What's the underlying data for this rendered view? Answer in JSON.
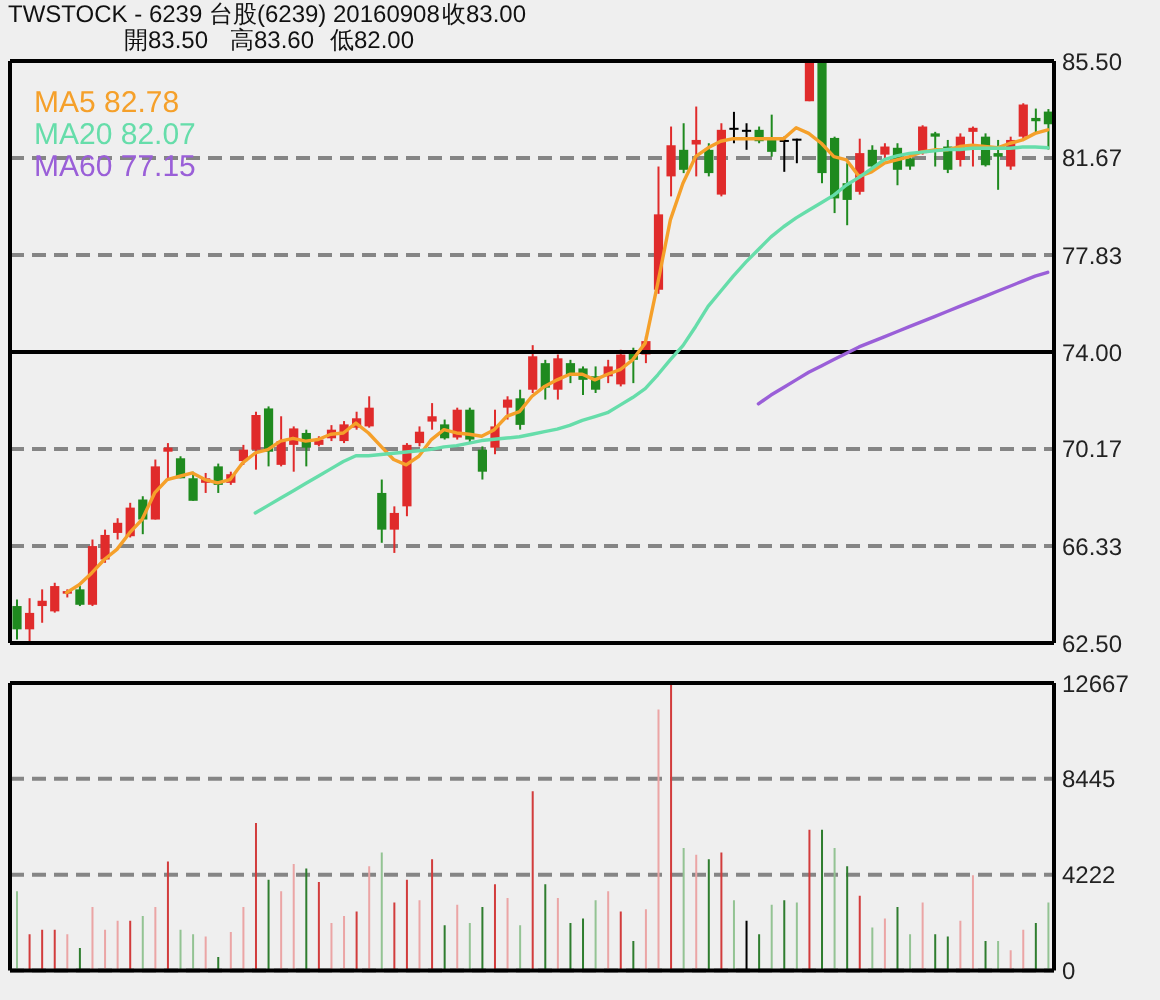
{
  "chart_data": [
    {
      "type": "candlestick",
      "title": "TWSTOCK - 6239 台股(6239) 20160908",
      "annotations": [
        "收83.00",
        "開83.50",
        "高83.60",
        "低82.00"
      ],
      "categories": [
        null,
        null,
        null,
        null,
        null,
        null,
        null,
        null,
        null,
        null,
        null,
        null,
        null,
        null,
        null,
        null,
        null,
        null,
        null,
        null,
        null,
        null,
        null,
        null,
        null,
        null,
        null,
        null,
        null,
        null,
        null,
        null,
        null,
        null,
        null,
        null,
        null,
        null,
        null,
        null,
        null,
        null,
        null,
        null,
        null,
        null,
        null,
        null,
        null,
        null,
        null,
        null,
        null,
        null,
        null,
        null,
        null,
        null,
        null,
        null,
        null,
        null,
        null,
        null,
        null,
        null,
        null,
        null,
        null,
        null,
        null,
        null,
        null,
        null,
        null,
        null,
        null,
        null,
        null,
        null,
        null,
        null,
        null
      ],
      "ohlc": [
        [
          63.96,
          64.22,
          62.64,
          63.04
        ],
        [
          63.04,
          64.27,
          62.5,
          63.69
        ],
        [
          63.96,
          64.62,
          63.3,
          64.17
        ],
        [
          63.75,
          64.88,
          63.7,
          64.75
        ],
        [
          64.45,
          64.62,
          64.3,
          64.55
        ],
        [
          64.62,
          64.75,
          63.96,
          64.01
        ],
        [
          64.01,
          66.59,
          63.96,
          66.33
        ],
        [
          65.8,
          66.98,
          65.67,
          66.77
        ],
        [
          66.85,
          67.43,
          66.59,
          67.25
        ],
        [
          66.72,
          68.04,
          66.67,
          67.85
        ],
        [
          68.17,
          68.3,
          66.8,
          67.38
        ],
        [
          67.38,
          69.75,
          67.38,
          69.48
        ],
        [
          70.06,
          70.4,
          68.96,
          70.22
        ],
        [
          69.8,
          69.88,
          69.01,
          69.01
        ],
        [
          69.01,
          69.27,
          68.12,
          68.12
        ],
        [
          68.83,
          69.22,
          68.43,
          69.01
        ],
        [
          69.48,
          69.59,
          68.43,
          68.75
        ],
        [
          68.83,
          69.27,
          68.75,
          69.17
        ],
        [
          69.69,
          70.33,
          69.54,
          70.14
        ],
        [
          70.14,
          71.64,
          69.35,
          71.51
        ],
        [
          71.77,
          71.85,
          69.48,
          70.06
        ],
        [
          69.54,
          71.46,
          69.48,
          70.48
        ],
        [
          70.33,
          71.06,
          69.27,
          70.98
        ],
        [
          70.8,
          70.93,
          69.48,
          70.22
        ],
        [
          70.33,
          70.67,
          70.27,
          70.54
        ],
        [
          70.59,
          71.11,
          70.48,
          70.93
        ],
        [
          70.48,
          71.27,
          70.4,
          71.14
        ],
        [
          71.01,
          71.64,
          70.93,
          71.38
        ],
        [
          71.06,
          72.25,
          71.01,
          71.8
        ],
        [
          68.43,
          68.96,
          66.46,
          66.98
        ],
        [
          66.98,
          67.9,
          66.06,
          67.64
        ],
        [
          67.9,
          70.4,
          67.51,
          70.33
        ],
        [
          70.4,
          71.06,
          70.27,
          70.85
        ],
        [
          71.25,
          71.98,
          70.93,
          71.46
        ],
        [
          71.14,
          71.33,
          70.54,
          70.59
        ],
        [
          70.62,
          71.8,
          70.54,
          71.72
        ],
        [
          71.72,
          71.8,
          70.4,
          70.54
        ],
        [
          70.14,
          70.27,
          68.96,
          69.27
        ],
        [
          70.22,
          71.72,
          69.96,
          71.06
        ],
        [
          71.8,
          72.25,
          71.33,
          72.12
        ],
        [
          72.17,
          72.51,
          70.93,
          71.12
        ],
        [
          72.51,
          74.27,
          72.38,
          73.83
        ],
        [
          73.56,
          73.69,
          72.12,
          72.59
        ],
        [
          72.51,
          73.9,
          72.12,
          73.75
        ],
        [
          73.56,
          73.69,
          72.77,
          73.12
        ],
        [
          73.35,
          73.43,
          72.3,
          72.9
        ],
        [
          73.04,
          73.43,
          72.38,
          72.51
        ],
        [
          73.04,
          73.69,
          72.77,
          73.43
        ],
        [
          72.72,
          74.09,
          72.64,
          73.9
        ],
        [
          74.01,
          74.17,
          72.77,
          73.69
        ],
        [
          73.9,
          74.62,
          73.56,
          74.43
        ],
        [
          76.46,
          81.33,
          76.3,
          79.44
        ],
        [
          80.94,
          82.91,
          80.15,
          82.17
        ],
        [
          81.99,
          83.04,
          81.07,
          81.2
        ],
        [
          82.2,
          83.7,
          80.94,
          82.38
        ],
        [
          81.99,
          82.25,
          80.94,
          81.07
        ],
        [
          80.22,
          83.04,
          80.15,
          82.78
        ],
        [
          82.86,
          83.49,
          82.25,
          82.86
        ],
        [
          82.78,
          83.04,
          81.99,
          82.78
        ],
        [
          82.78,
          82.91,
          82.25,
          82.33
        ],
        [
          82.38,
          83.38,
          81.72,
          81.91
        ],
        [
          82.38,
          82.51,
          81.12,
          82.38
        ],
        [
          82.43,
          82.43,
          81.46,
          82.43
        ],
        [
          83.91,
          85.5,
          83.91,
          85.5
        ],
        [
          85.5,
          85.5,
          80.67,
          81.07
        ],
        [
          82.46,
          82.51,
          79.49,
          80.07
        ],
        [
          80.67,
          81.46,
          79.01,
          80.01
        ],
        [
          80.33,
          82.43,
          80.22,
          81.86
        ],
        [
          81.99,
          82.17,
          81.2,
          81.33
        ],
        [
          81.8,
          82.25,
          81.59,
          82.12
        ],
        [
          82.07,
          82.25,
          80.59,
          81.2
        ],
        [
          81.65,
          81.86,
          81.2,
          81.33
        ],
        [
          81.86,
          82.96,
          81.8,
          82.91
        ],
        [
          82.64,
          82.7,
          81.33,
          82.51
        ],
        [
          82.12,
          82.38,
          81.07,
          81.2
        ],
        [
          81.59,
          82.64,
          81.33,
          82.51
        ],
        [
          82.7,
          82.91,
          81.33,
          82.86
        ],
        [
          82.51,
          82.64,
          81.33,
          81.38
        ],
        [
          81.86,
          82.38,
          80.41,
          81.72
        ],
        [
          81.33,
          82.51,
          81.2,
          82.38
        ],
        [
          82.51,
          83.83,
          82.38,
          83.78
        ],
        [
          83.25,
          83.62,
          82.64,
          83.12
        ],
        [
          83.5,
          83.6,
          82.0,
          83.0
        ]
      ],
      "colors": [
        "#1f8a1f",
        "#e02b2b",
        "#e02b2b",
        "#e02b2b",
        "#e02b2b",
        "#1f8a1f",
        "#e02b2b",
        "#e02b2b",
        "#e02b2b",
        "#e02b2b",
        "#1f8a1f",
        "#e02b2b",
        "#e02b2b",
        "#1f8a1f",
        "#1f8a1f",
        "#e02b2b",
        "#1f8a1f",
        "#e02b2b",
        "#e02b2b",
        "#e02b2b",
        "#1f8a1f",
        "#e02b2b",
        "#e02b2b",
        "#1f8a1f",
        "#e02b2b",
        "#e02b2b",
        "#e02b2b",
        "#e02b2b",
        "#e02b2b",
        "#1f8a1f",
        "#e02b2b",
        "#e02b2b",
        "#e02b2b",
        "#e02b2b",
        "#1f8a1f",
        "#e02b2b",
        "#1f8a1f",
        "#1f8a1f",
        "#e02b2b",
        "#e02b2b",
        "#1f8a1f",
        "#e02b2b",
        "#1f8a1f",
        "#e02b2b",
        "#1f8a1f",
        "#1f8a1f",
        "#1f8a1f",
        "#e02b2b",
        "#e02b2b",
        "#1f8a1f",
        "#e02b2b",
        "#e02b2b",
        "#e02b2b",
        "#1f8a1f",
        "#e02b2b",
        "#1f8a1f",
        "#e02b2b",
        "#000000",
        "#000000",
        "#1f8a1f",
        "#1f8a1f",
        "#000000",
        "#000000",
        "#e02b2b",
        "#1f8a1f",
        "#1f8a1f",
        "#1f8a1f",
        "#e02b2b",
        "#1f8a1f",
        "#e02b2b",
        "#1f8a1f",
        "#1f8a1f",
        "#e02b2b",
        "#1f8a1f",
        "#1f8a1f",
        "#e02b2b",
        "#e02b2b",
        "#1f8a1f",
        "#1f8a1f",
        "#e02b2b",
        "#e02b2b",
        "#1f8a1f",
        "#1f8a1f"
      ],
      "series": [
        {
          "name": "MA5 82.78",
          "type": "line",
          "color": "#f5a02a",
          "values": [
            null,
            null,
            null,
            null,
            64.49,
            64.8,
            65.27,
            65.8,
            66.2,
            66.85,
            67.38,
            68.43,
            68.96,
            69.09,
            69.22,
            68.96,
            68.83,
            68.96,
            69.62,
            70.01,
            70.14,
            70.48,
            70.59,
            70.48,
            70.54,
            70.75,
            70.8,
            71.19,
            70.8,
            70.27,
            69.75,
            69.54,
            69.88,
            70.54,
            70.93,
            70.8,
            70.75,
            70.67,
            70.93,
            71.46,
            71.64,
            72.25,
            72.64,
            72.9,
            73.12,
            73.12,
            72.9,
            73.12,
            73.3,
            73.69,
            74.35,
            76.72,
            79.22,
            80.67,
            81.72,
            82.07,
            82.33,
            82.43,
            82.43,
            82.43,
            82.43,
            82.43,
            82.86,
            82.64,
            82.25,
            81.72,
            81.59,
            80.94,
            81.12,
            81.46,
            81.59,
            81.72,
            81.91,
            81.99,
            81.99,
            82.12,
            82.17,
            82.12,
            82.07,
            82.25,
            82.38,
            82.64,
            82.78
          ]
        },
        {
          "name": "MA20 82.07",
          "type": "line",
          "color": "#66ddaa",
          "values": [
            null,
            null,
            null,
            null,
            null,
            null,
            null,
            null,
            null,
            null,
            null,
            null,
            null,
            null,
            null,
            null,
            null,
            null,
            null,
            67.64,
            67.93,
            68.22,
            68.51,
            68.8,
            69.09,
            69.38,
            69.67,
            69.9,
            69.9,
            69.95,
            70.0,
            70.05,
            70.1,
            70.15,
            70.25,
            70.3,
            70.4,
            70.5,
            70.55,
            70.6,
            70.65,
            70.75,
            70.85,
            70.95,
            71.1,
            71.3,
            71.45,
            71.6,
            71.9,
            72.2,
            72.55,
            73.1,
            73.7,
            74.25,
            75.0,
            75.8,
            76.4,
            77.0,
            77.55,
            78.05,
            78.55,
            78.95,
            79.3,
            79.6,
            79.9,
            80.2,
            80.6,
            80.9,
            81.25,
            81.6,
            81.75,
            81.85,
            81.9,
            81.95,
            82.0,
            82.0,
            82.05,
            82.05,
            82.05,
            82.05,
            82.1,
            82.1,
            82.07
          ]
        },
        {
          "name": "MA60 77.15",
          "type": "line",
          "color": "#9a5fd8",
          "values": [
            null,
            null,
            null,
            null,
            null,
            null,
            null,
            null,
            null,
            null,
            null,
            null,
            null,
            null,
            null,
            null,
            null,
            null,
            null,
            null,
            null,
            null,
            null,
            null,
            null,
            null,
            null,
            null,
            null,
            null,
            null,
            null,
            null,
            null,
            null,
            null,
            null,
            null,
            null,
            null,
            null,
            null,
            null,
            null,
            null,
            null,
            null,
            null,
            null,
            null,
            null,
            null,
            null,
            null,
            null,
            null,
            null,
            null,
            null,
            71.95,
            72.3,
            72.6,
            72.9,
            73.2,
            73.45,
            73.7,
            73.95,
            74.2,
            74.4,
            74.6,
            74.8,
            75.0,
            75.2,
            75.4,
            75.6,
            75.8,
            76.0,
            76.2,
            76.4,
            76.6,
            76.8,
            77.0,
            77.15
          ]
        }
      ],
      "ylim": [
        62.5,
        85.5
      ],
      "yticks": [
        {
          "value": 62.5,
          "label": "62.50"
        },
        66.33,
        70.17,
        {
          "value": 74,
          "label": "74.00"
        },
        77.83,
        81.67,
        {
          "value": 85.5,
          "label": "85.50"
        }
      ],
      "ref_lines": [
        {
          "axis": "y",
          "value": 74,
          "color": "#000000"
        }
      ],
      "grid": "y",
      "legend": "top left",
      "tick_labels": "y"
    },
    {
      "type": "bar",
      "categories": [
        null,
        null,
        null,
        null,
        null,
        null,
        null,
        null,
        null,
        null,
        null,
        null,
        null,
        null,
        null,
        null,
        null,
        null,
        null,
        null,
        null,
        null,
        null,
        null,
        null,
        null,
        null,
        null,
        null,
        null,
        null,
        null,
        null,
        null,
        null,
        null,
        null,
        null,
        null,
        null,
        null,
        null,
        null,
        null,
        null,
        null,
        null,
        null,
        null,
        null,
        null,
        null,
        null,
        null,
        null,
        null,
        null,
        null,
        null,
        null,
        null,
        null,
        null,
        null,
        null,
        null,
        null,
        null,
        null,
        null,
        null,
        null,
        null,
        null,
        null,
        null,
        null,
        null,
        null,
        null,
        null,
        null,
        null
      ],
      "values": [
        3500,
        1600,
        1800,
        1800,
        1600,
        1000,
        2800,
        1800,
        2200,
        2200,
        2400,
        2800,
        4800,
        1800,
        1600,
        1500,
        600,
        1700,
        2800,
        6500,
        4000,
        3500,
        4700,
        4500,
        3900,
        2100,
        2400,
        2600,
        4600,
        5200,
        3000,
        4000,
        3100,
        4900,
        2000,
        2900,
        2100,
        2800,
        3800,
        3200,
        2000,
        7900,
        3800,
        3200,
        2100,
        2300,
        3100,
        3500,
        2600,
        1300,
        2700,
        11500,
        12667,
        5400,
        5100,
        4900,
        5200,
        3100,
        2200,
        1600,
        2900,
        3100,
        3000,
        6200,
        6200,
        5400,
        4600,
        3300,
        1900,
        2300,
        2800,
        1600,
        3000,
        1600,
        1500,
        2200,
        4200,
        1300,
        1300,
        900,
        1800,
        2100,
        3000
      ],
      "colors": [
        "#93c393",
        "#d23c3c",
        "#d23c3c",
        "#d23c3c",
        "#eba5a5",
        "#2f7d2f",
        "#eba5a5",
        "#eba5a5",
        "#eba5a5",
        "#d23c3c",
        "#93c393",
        "#eba5a5",
        "#d23c3c",
        "#93c393",
        "#93c393",
        "#eba5a5",
        "#2f7d2f",
        "#eba5a5",
        "#eba5a5",
        "#d23c3c",
        "#2f7d2f",
        "#eba5a5",
        "#eba5a5",
        "#2f7d2f",
        "#d23c3c",
        "#eba5a5",
        "#eba5a5",
        "#d23c3c",
        "#eba5a5",
        "#93c393",
        "#d23c3c",
        "#d23c3c",
        "#eba5a5",
        "#d23c3c",
        "#2f7d2f",
        "#eba5a5",
        "#93c393",
        "#2f7d2f",
        "#d23c3c",
        "#eba5a5",
        "#93c393",
        "#d23c3c",
        "#2f7d2f",
        "#eba5a5",
        "#2f7d2f",
        "#2f7d2f",
        "#93c393",
        "#eba5a5",
        "#d23c3c",
        "#2f7d2f",
        "#eba5a5",
        "#eba5a5",
        "#d23c3c",
        "#93c393",
        "#eba5a5",
        "#2f7d2f",
        "#d23c3c",
        "#93c393",
        "#000000",
        "#2f7d2f",
        "#93c393",
        "#2f7d2f",
        "#93c393",
        "#d23c3c",
        "#2f7d2f",
        "#93c393",
        "#2f7d2f",
        "#d23c3c",
        "#93c393",
        "#eba5a5",
        "#2f7d2f",
        "#93c393",
        "#eba5a5",
        "#2f7d2f",
        "#2f7d2f",
        "#eba5a5",
        "#eba5a5",
        "#2f7d2f",
        "#93c393",
        "#eba5a5",
        "#eba5a5",
        "#2f7d2f",
        "#93c393"
      ],
      "ylim": [
        0,
        12667
      ],
      "yticks": [
        0,
        4222,
        8445,
        12667
      ],
      "grid": "y",
      "tick_labels": "y"
    }
  ]
}
